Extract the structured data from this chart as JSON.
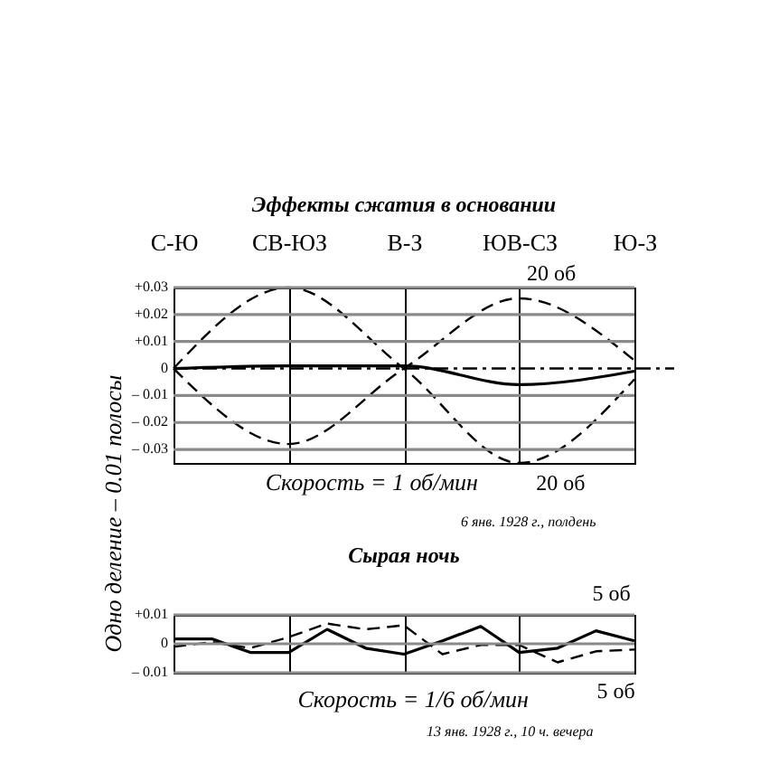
{
  "chart_data": [
    {
      "type": "line",
      "title": "Эффекты сжатия в основании",
      "ylabel": "Одно деление – 0.01 полосы",
      "annotations": [
        "20 об",
        "20 об",
        "Скорость = 1 об/мин",
        "6 янв. 1928 г., полдень"
      ],
      "categories": [
        "С-Ю",
        "СВ-ЮЗ",
        "В-З",
        "ЮВ-СЗ",
        "Ю-З"
      ],
      "ylim": [
        -0.035,
        0.03
      ],
      "yticks": [
        {
          "value": 0.03,
          "label": "+0.03"
        },
        {
          "value": 0.02,
          "label": "+0.02"
        },
        {
          "value": 0.01,
          "label": "+0.01"
        },
        0,
        {
          "value": -0.01,
          "label": "– 0.01"
        },
        {
          "value": -0.02,
          "label": "– 0.02"
        },
        {
          "value": -0.03,
          "label": "– 0.03"
        }
      ],
      "grid": true,
      "ref_lines": [
        {
          "axis": "y",
          "value": 0
        }
      ],
      "series": [
        {
          "color": "#000000",
          "line_style": "dashed",
          "values": [
            0,
            0.03,
            0,
            -0.035,
            -0.004
          ]
        },
        {
          "color": "#000000",
          "line_style": "dashed",
          "values": [
            0,
            -0.028,
            0,
            0.026,
            0.003
          ]
        },
        {
          "color": "#000000",
          "line_style": "solid",
          "values": [
            0,
            0.001,
            0.001,
            -0.006,
            -0.001
          ]
        }
      ]
    },
    {
      "type": "line",
      "title": "Сырая ночь",
      "annotations": [
        "5 об",
        "5 об",
        "Скорость = 1/6 об/мин",
        "13 янв. 1928 г., 10 ч. вечера"
      ],
      "categories": [
        null,
        null,
        null,
        null,
        null,
        null,
        null,
        null,
        null,
        null,
        null,
        null,
        null
      ],
      "ylim": [
        -0.01,
        0.01
      ],
      "yticks": [
        {
          "value": 0.01,
          "label": "+0.01"
        },
        0,
        {
          "value": -0.01,
          "label": "– 0.01"
        }
      ],
      "grid": true,
      "series": [
        {
          "color": "#000000",
          "line_style": "solid",
          "values": [
            0.0017,
            0.0017,
            -0.003,
            -0.003,
            0.005,
            -0.0015,
            -0.0036,
            0.001,
            0.006,
            -0.003,
            -0.0015,
            0.0045,
            0.001
          ]
        },
        {
          "color": "#000000",
          "line_style": "dashed",
          "values": [
            -0.001,
            0.0006,
            -0.0015,
            0.0023,
            0.007,
            0.005,
            0.0064,
            -0.0036,
            -0.0004,
            -0.0004,
            -0.0064,
            -0.0026,
            -0.002
          ]
        }
      ]
    }
  ]
}
